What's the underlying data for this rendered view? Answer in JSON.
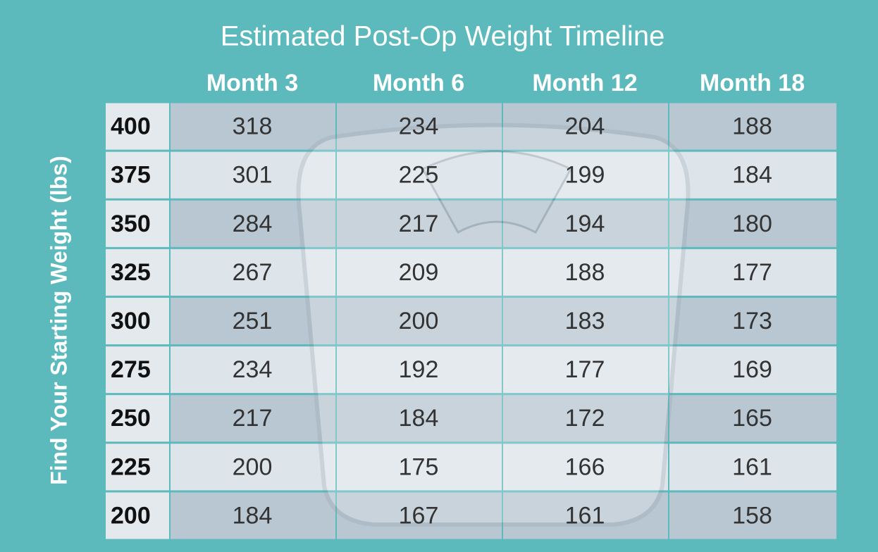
{
  "header": {
    "title": "Estimated Post-Op Weight Timeline",
    "side_label": "Find Your Starting Weight (lbs)"
  },
  "table": {
    "columns": [
      "Month 3",
      "Month 6",
      "Month 12",
      "Month 18"
    ],
    "rows": [
      [
        400,
        318,
        234,
        204,
        188
      ],
      [
        375,
        301,
        225,
        199,
        184
      ],
      [
        350,
        284,
        217,
        194,
        180
      ],
      [
        325,
        267,
        209,
        188,
        177
      ],
      [
        300,
        251,
        200,
        183,
        173
      ],
      [
        275,
        234,
        192,
        177,
        169
      ],
      [
        250,
        217,
        184,
        172,
        165
      ],
      [
        225,
        200,
        175,
        166,
        161
      ],
      [
        200,
        184,
        167,
        161,
        158
      ]
    ]
  }
}
